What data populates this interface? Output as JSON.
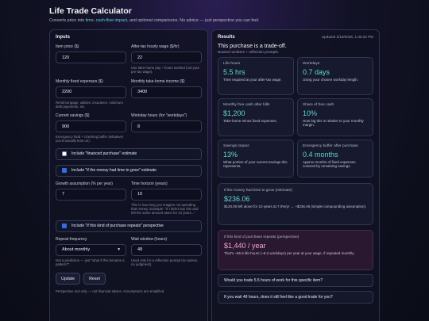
{
  "header": {
    "title": "Life Trade Calculator",
    "subtitle": [
      "Converts price into ",
      "time",
      ", ",
      "cash-flow impact",
      ", and optional comparisons. No advice — just perspective you can feel."
    ]
  },
  "inputs": {
    "title": "Inputs",
    "fields": [
      {
        "label": "Item price ($)",
        "value": "120"
      },
      {
        "label": "After-tax hourly wage ($/hr)",
        "value": "22",
        "hint": "Use take-home pay ÷ hours worked (not your pre-tax wage)."
      },
      {
        "label": "Monthly fixed expenses ($)",
        "value": "2200",
        "hint": "Rent/mortgage, utilities, insurance, minimum debt payments, etc."
      },
      {
        "label": "Monthly take-home income ($)",
        "value": "3400"
      },
      {
        "label": "Current savings ($)",
        "value": "900",
        "hint": "Emergency fund + checking buffer (whatever you'd actually lean on)."
      },
      {
        "label": "Workday hours (for \"workdays\")",
        "value": "8"
      }
    ],
    "checks": [
      {
        "label": "Include \"financed purchase\" estimate",
        "checked": false
      },
      {
        "label": "Include \"if the money had time to grow\" estimate",
        "checked": true
      },
      {
        "label": "Include \"if this kind of purchase repeats\" perspective",
        "checked": true
      }
    ],
    "growth": [
      {
        "label": "Growth assumption (% per year)",
        "value": "7"
      },
      {
        "label": "Time horizon (years)",
        "value": "10",
        "hint": "This is how long you imagine not spending that money. Example: \"If I didn't buy this and left the same amount alone for 10 years...\""
      }
    ],
    "repeat": [
      {
        "label": "Repeat frequency",
        "value": "About monthly",
        "hint": "Not a prediction — just \"what if this became a pattern?\""
      },
      {
        "label": "Wait window (hours)",
        "value": "48",
        "hint": "Used only for a reflection prompt (no advice, no judgment)."
      }
    ],
    "buttons": [
      "Update",
      "Reset"
    ],
    "footer": "Perspective tool only — not financial advice. Assumptions are simplified."
  },
  "results": {
    "title": "Results",
    "updated": "Updated 2/19/2026, 1:30:22 PM",
    "headline": "This purchase is a trade-off.",
    "subline": "Neutral numbers + reflection prompts.",
    "cards": [
      {
        "label": "Life-hours",
        "value": "5.5 hrs",
        "desc": "Time required at your after-tax wage."
      },
      {
        "label": "Workdays",
        "value": "0.7 days",
        "desc": "Using your chosen workday length."
      },
      {
        "label": "Monthly free cash after bills",
        "value": "$1,200",
        "desc": "Take-home minus fixed expenses."
      },
      {
        "label": "Share of free cash",
        "value": "10%",
        "desc": "How big this is relative to your monthly margin."
      },
      {
        "label": "Savings impact",
        "value": "13%",
        "desc": "What portion of your current savings this represents."
      },
      {
        "label": "Emergency buffer after purchase",
        "value": "0.4 months",
        "desc": "Approx months of fixed expenses covered by remaining savings."
      }
    ],
    "growth": {
      "label": "If the money had time to grow (estimate)",
      "value": "$236.06",
      "desc": "$120.00 left alone for 10 years at 7.0%/yr → ~$236.06 (simple compounding assumption)."
    },
    "repeat": {
      "label": "If this kind of purchase repeats (perspective)",
      "value": "$1,440 / year",
      "desc": "That's ~65.5 life-hours (~8.2 workdays) per year at your wage, if repeated monthly."
    },
    "prompts": [
      "Would you trade 5.5 hours of work for this specific item?",
      "If you wait 48 hours, does it still feel like a good trade for you?"
    ]
  }
}
